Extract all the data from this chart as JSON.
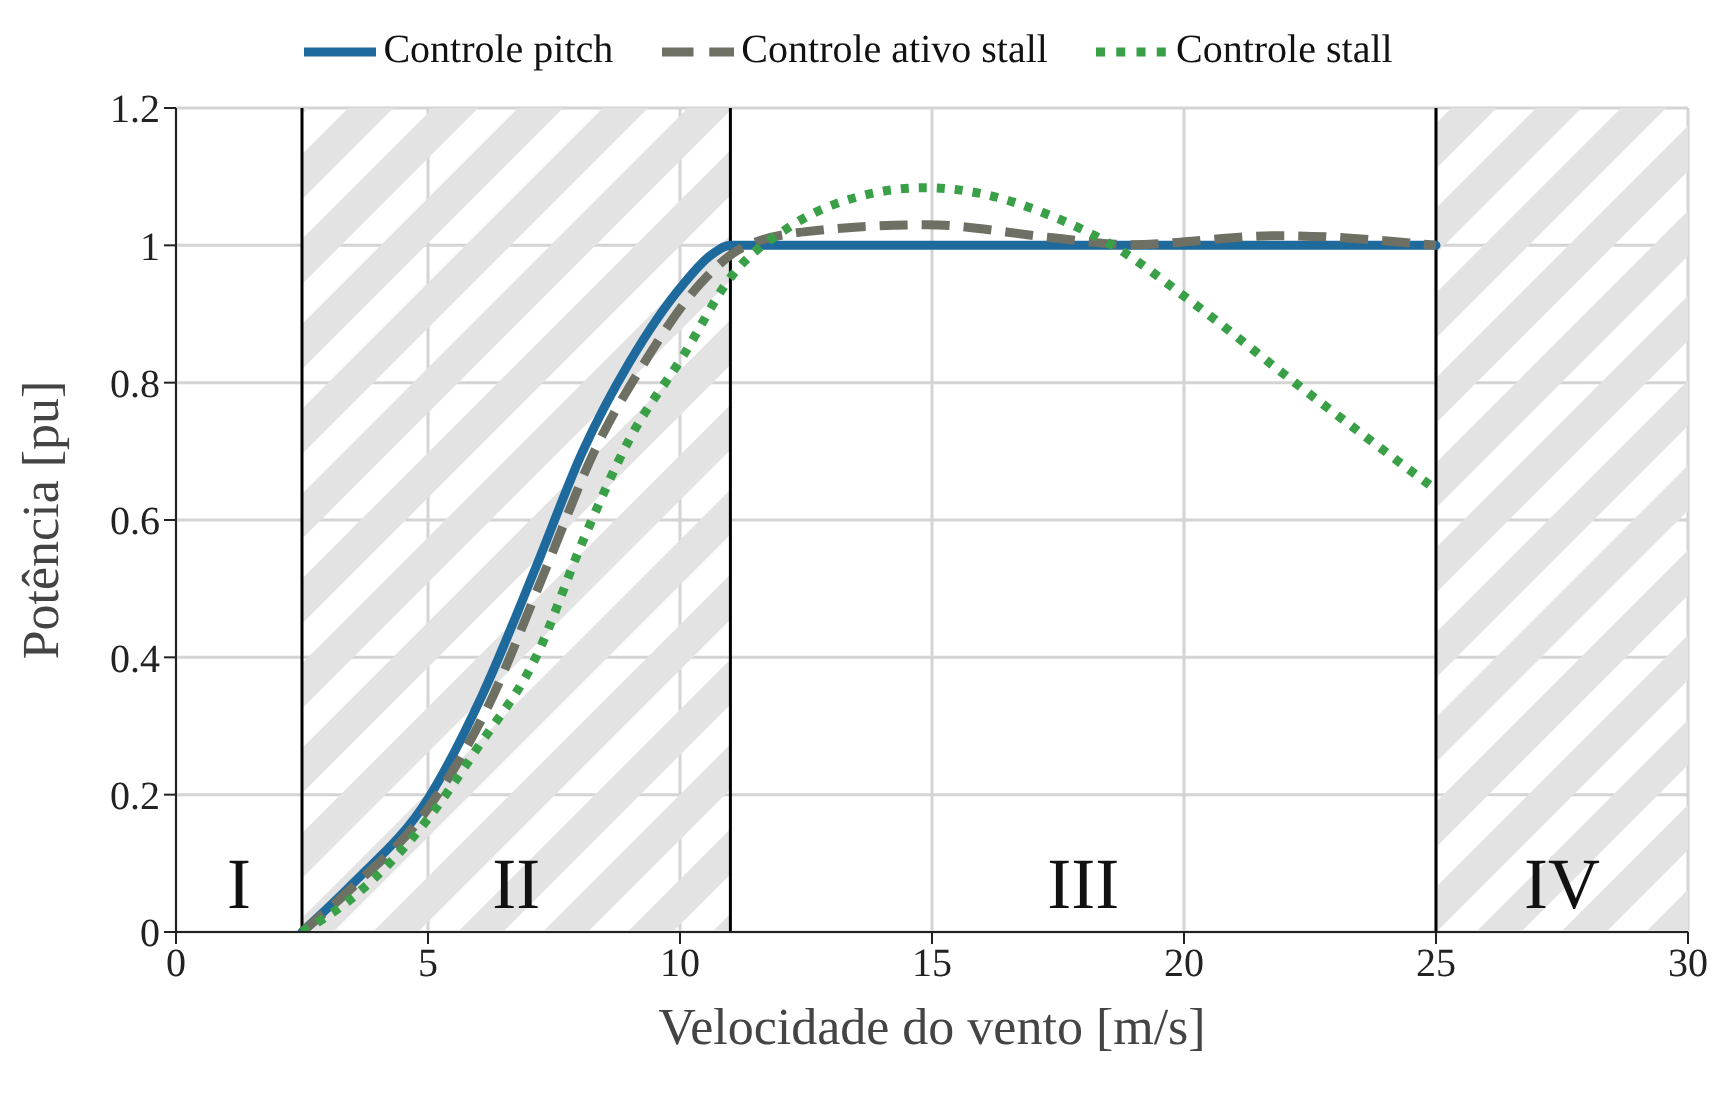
{
  "chart_data": {
    "type": "line",
    "xlabel": "Velocidade do vento [m/s]",
    "ylabel": "Potência [pu]",
    "xlim": [
      0,
      30
    ],
    "xticks": [
      0,
      5,
      10,
      15,
      20,
      25,
      30
    ],
    "ylim": [
      0,
      1.2
    ],
    "yticks": [
      0,
      0.2,
      0.4,
      0.6,
      0.8,
      1,
      1.2
    ],
    "grid": true,
    "legend": "top",
    "marker": "none",
    "series": [
      {
        "name": "Controle pitch",
        "color": "#1f6a9c",
        "line_style": "solid",
        "x": [
          2.5,
          3.5,
          5,
          6.07,
          7.14,
          8.07,
          9,
          10.07,
          10.6,
          11,
          12,
          15,
          20,
          25
        ],
        "values": [
          0,
          0.07,
          0.194,
          0.344,
          0.531,
          0.7,
          0.83,
          0.944,
          0.985,
          1,
          1,
          1,
          1,
          1
        ]
      },
      {
        "name": "Controle ativo stall",
        "color": "#6e7063",
        "line_style": "dashed",
        "x": [
          2.5,
          3.5,
          5,
          6.2,
          7.35,
          8.3,
          9.3,
          10.4,
          11.2,
          12.5,
          14.9,
          17.4,
          18.9,
          21.9,
          25
        ],
        "values": [
          0,
          0.065,
          0.18,
          0.33,
          0.531,
          0.7,
          0.83,
          0.944,
          0.995,
          1.02,
          1.03,
          1.011,
          1.001,
          1.014,
          1
        ]
      },
      {
        "name": "Controle stall",
        "color": "#3aa048",
        "line_style": "dotted",
        "x": [
          2.5,
          3.5,
          5,
          6,
          7.14,
          8.07,
          9,
          10.07,
          11,
          12.2,
          13.5,
          14.86,
          16,
          17.26,
          18.58,
          20.2,
          22.2,
          25
        ],
        "values": [
          0,
          0.05,
          0.165,
          0.27,
          0.4,
          0.569,
          0.718,
          0.84,
          0.953,
          1.028,
          1.07,
          1.084,
          1.075,
          1.046,
          1,
          0.915,
          0.8,
          0.644
        ]
      }
    ],
    "ref_lines": [
      {
        "axis": "x",
        "value": 2.5,
        "color": "#000000"
      },
      {
        "axis": "x",
        "value": 11,
        "color": "#000000"
      },
      {
        "axis": "x",
        "value": 25,
        "color": "#000000"
      }
    ],
    "bands": [
      {
        "axis": "x",
        "from": 2.5,
        "to": 11,
        "color": "#e3e3e3"
      },
      {
        "axis": "x",
        "from": 25,
        "to": 30,
        "color": "#e3e3e3"
      }
    ],
    "annotations": [
      "I",
      "II",
      "III",
      "IV"
    ]
  }
}
